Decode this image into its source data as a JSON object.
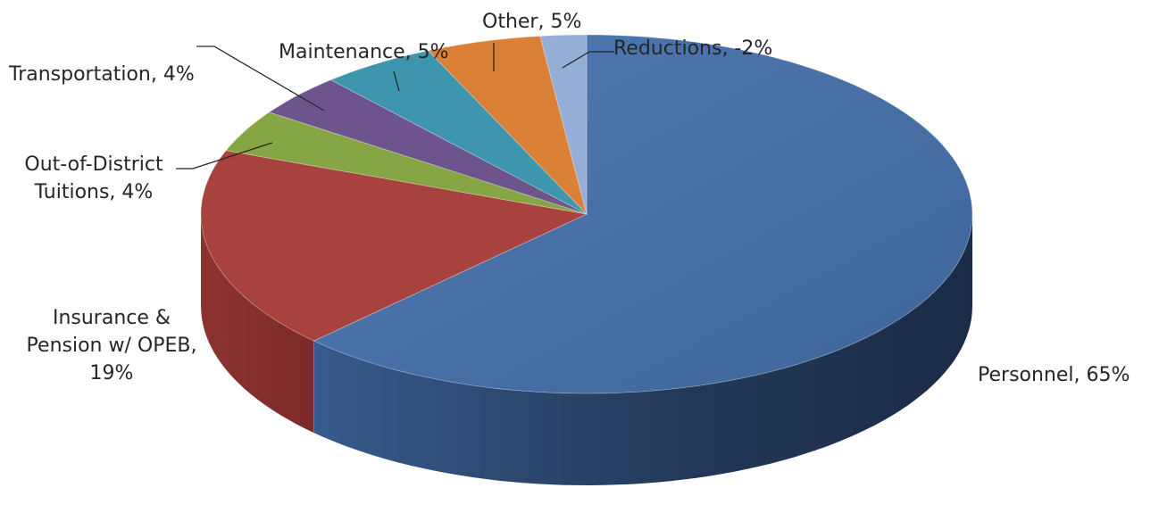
{
  "chart_data": {
    "type": "pie",
    "style": "3d",
    "start": "12 o'clock",
    "direction": "clockwise",
    "legend": "none",
    "slices": [
      {
        "name": "Personnel",
        "value": 65,
        "label_lines": [
          "Personnel, 65%"
        ],
        "color": "#4A71A8"
      },
      {
        "name": "Insurance & Pension w/ OPEB",
        "value": 19,
        "label_lines": [
          "Insurance &",
          "Pension w/ OPEB,",
          "19%"
        ],
        "color": "#A8423F"
      },
      {
        "name": "Out-of-District Tuitions",
        "value": 4,
        "label_lines": [
          "Out-of-District",
          "Tuitions, 4%"
        ],
        "color": "#86A544"
      },
      {
        "name": "Transportation",
        "value": 4,
        "label_lines": [
          "Transportation, 4%"
        ],
        "color": "#6E548D"
      },
      {
        "name": "Maintenance",
        "value": 5,
        "label_lines": [
          "Maintenance, 5%"
        ],
        "color": "#3D96AE"
      },
      {
        "name": "Other",
        "value": 5,
        "label_lines": [
          "Other, 5%"
        ],
        "color": "#DA8137"
      },
      {
        "name": "Reductions",
        "value": -2,
        "label_lines": [
          "Reductions, -2%"
        ],
        "color": "#95AED6"
      }
    ]
  }
}
